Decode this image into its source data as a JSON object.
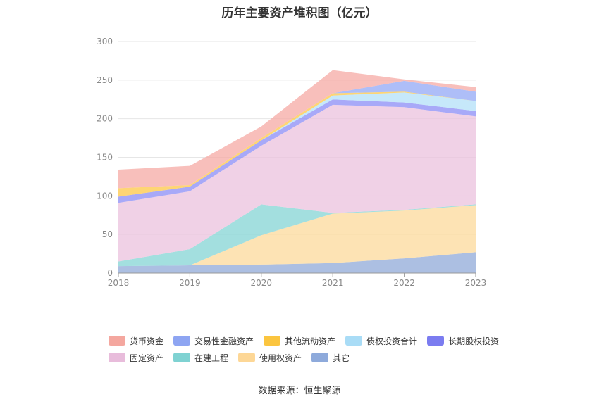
{
  "chart_data": {
    "type": "area",
    "title": "历年主要资产堆积图（亿元）",
    "categories": [
      "2018",
      "2019",
      "2020",
      "2021",
      "2022",
      "2023"
    ],
    "ylim": [
      0,
      300
    ],
    "yticks": [
      "0",
      "50",
      "100",
      "150",
      "200",
      "250",
      "300"
    ],
    "stacked": true,
    "grid": true,
    "legend_position": "bottom",
    "series": [
      {
        "name": "其它",
        "color": "#90aad8",
        "values": [
          9,
          10,
          11,
          13,
          19,
          27
        ]
      },
      {
        "name": "使用权资产",
        "color": "#fcd99b",
        "values": [
          0,
          0,
          38,
          64,
          62,
          61
        ]
      },
      {
        "name": "在建工程",
        "color": "#84d4d4",
        "values": [
          6,
          21,
          40,
          1,
          1,
          1
        ]
      },
      {
        "name": "固定资产",
        "color": "#ebc1de",
        "values": [
          76,
          75,
          76,
          140,
          133,
          114
        ]
      },
      {
        "name": "长期股权投资",
        "color": "#8b8cf5",
        "values": [
          8,
          6,
          7,
          7,
          6,
          7
        ]
      },
      {
        "name": "债权投资合计",
        "color": "#b3e0f8",
        "values": [
          0,
          0,
          0,
          5,
          13,
          13
        ]
      },
      {
        "name": "其他流动资产",
        "color": "#fdc745",
        "values": [
          11,
          2,
          3,
          3,
          1,
          0
        ]
      },
      {
        "name": "交易性金融资产",
        "color": "#93a8f5",
        "values": [
          0,
          0,
          0,
          0,
          14,
          12
        ]
      },
      {
        "name": "货币资金",
        "color": "#f6aaa4",
        "values": [
          24,
          25,
          15,
          30,
          2,
          6
        ]
      }
    ],
    "source": "数据来源：恒生聚源"
  },
  "legend": {
    "row1": [
      {
        "label": "货币资金",
        "color": "#f4a79f"
      },
      {
        "label": "交易性金融资产",
        "color": "#8ea5f2"
      },
      {
        "label": "其他流动资产",
        "color": "#fbc53f"
      },
      {
        "label": "债权投资合计",
        "color": "#a9dcf6"
      },
      {
        "label": "长期股权投资",
        "color": "#7b7cf0"
      }
    ],
    "row2": [
      {
        "label": "固定资产",
        "color": "#e8bcdb"
      },
      {
        "label": "在建工程",
        "color": "#7fd2d2"
      },
      {
        "label": "使用权资产",
        "color": "#fdd796"
      },
      {
        "label": "其它",
        "color": "#8eaadb"
      }
    ]
  }
}
